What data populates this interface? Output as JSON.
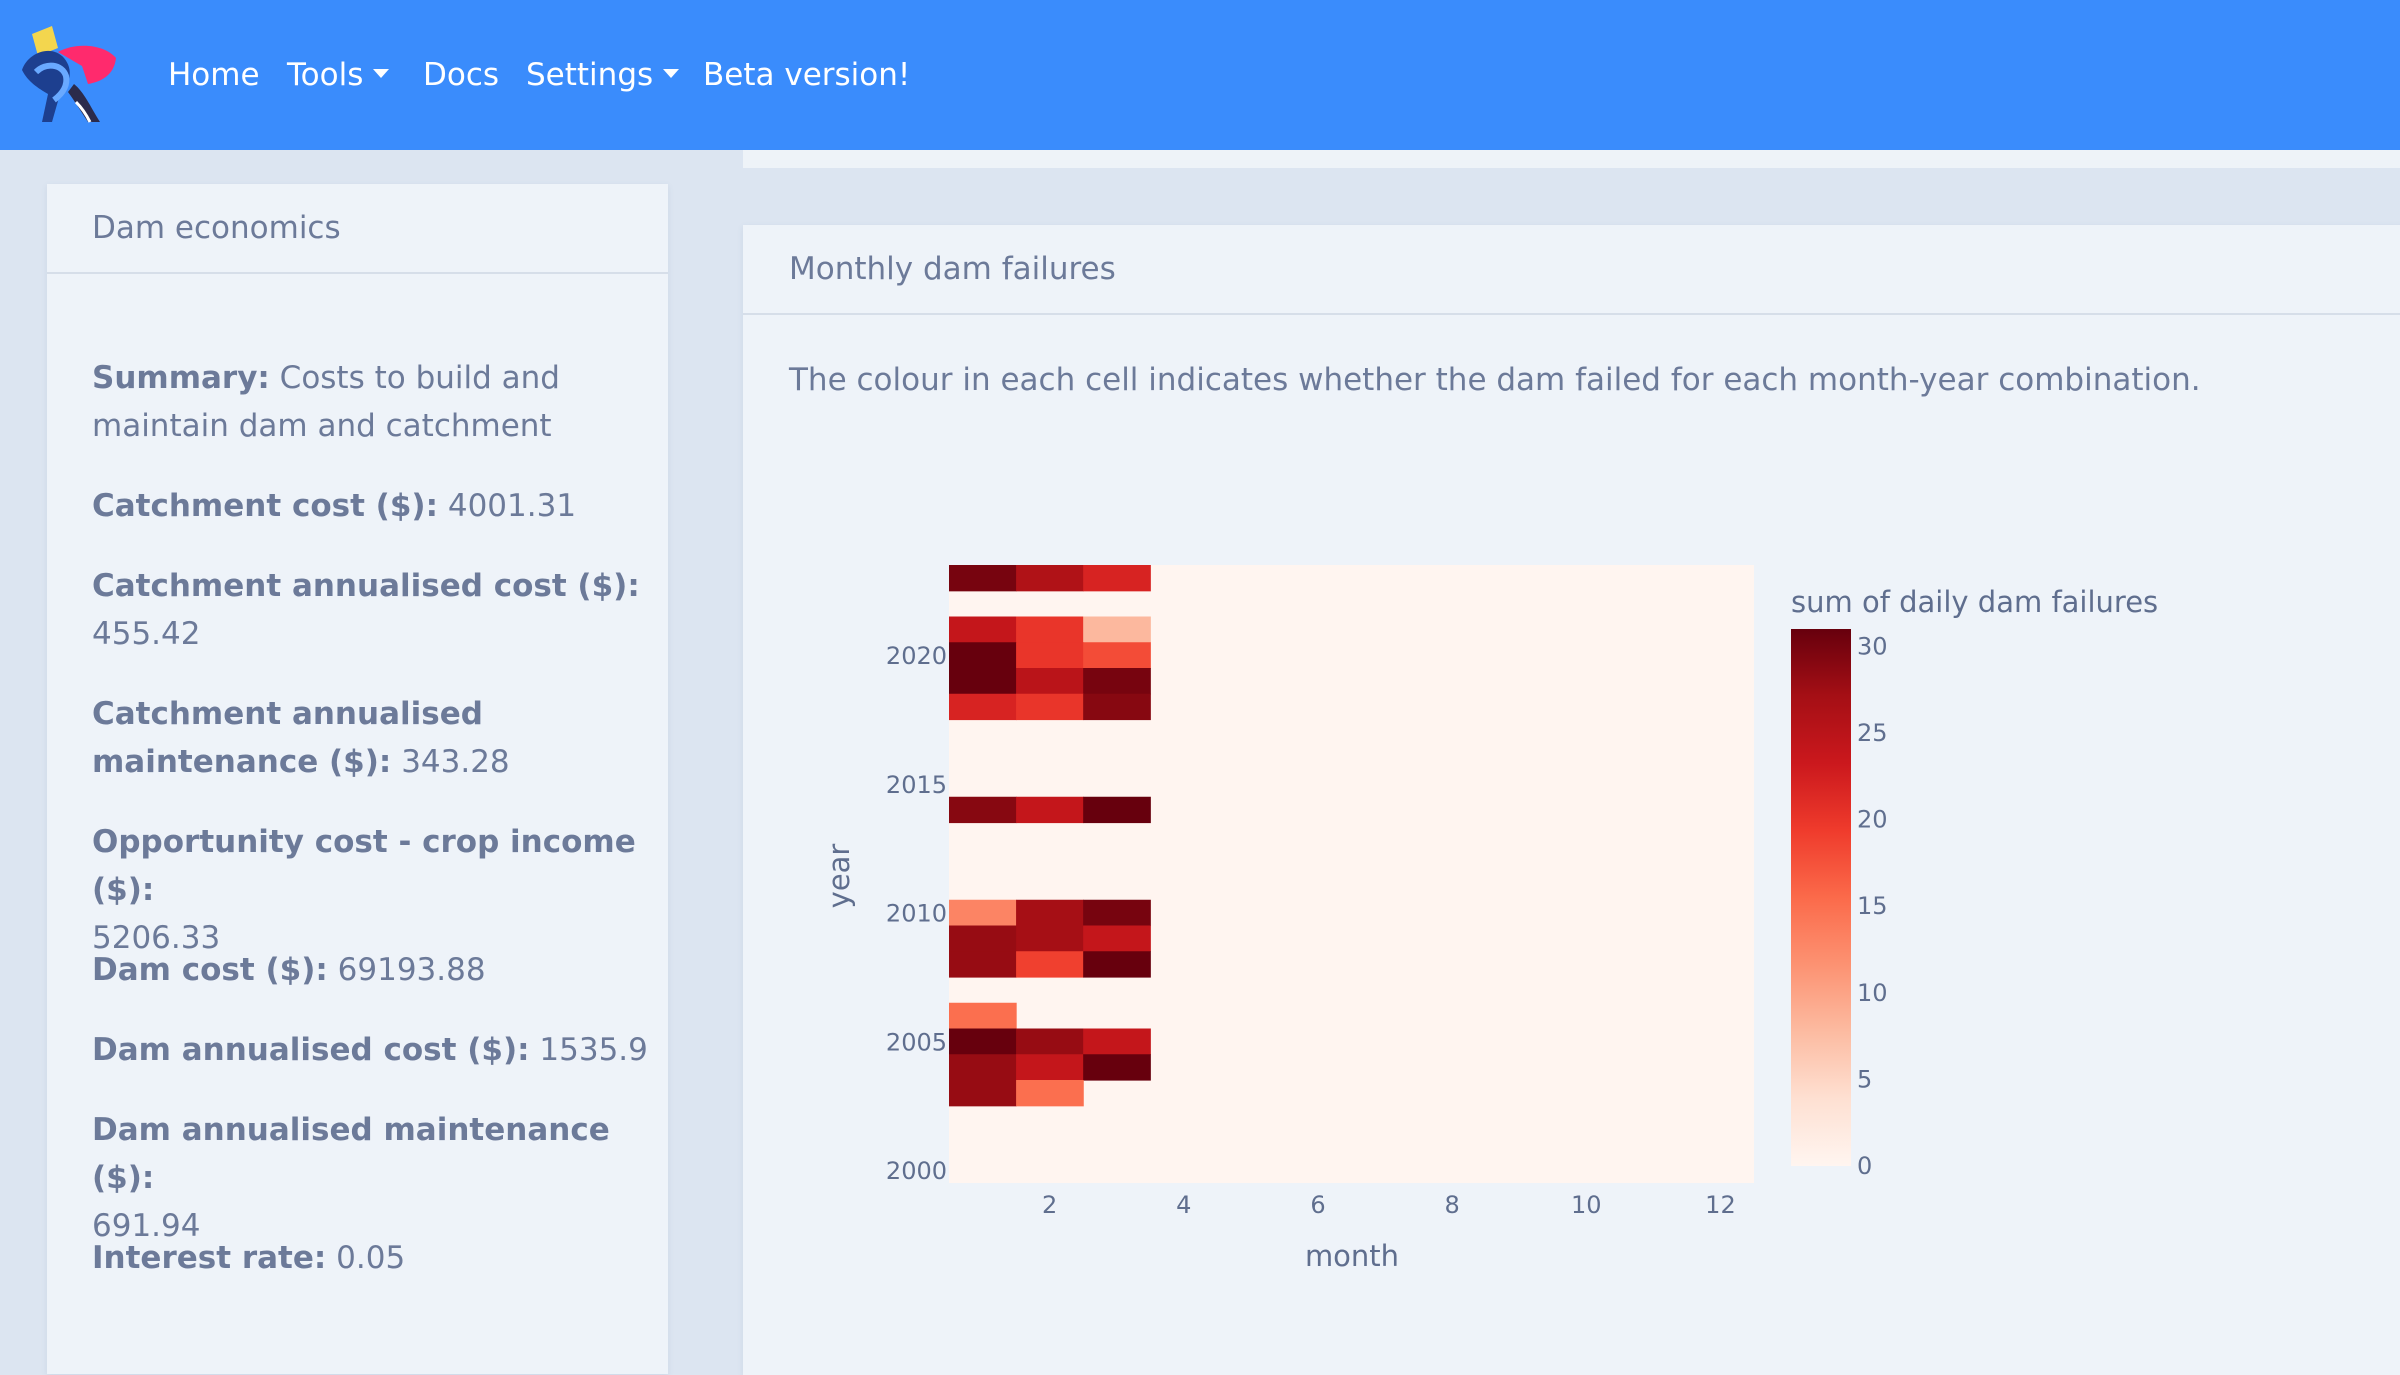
{
  "navbar": {
    "items": [
      {
        "label": "Home",
        "dropdown": false
      },
      {
        "label": "Tools",
        "dropdown": true
      },
      {
        "label": "Docs",
        "dropdown": false
      },
      {
        "label": "Settings",
        "dropdown": true
      },
      {
        "label": "Beta version!",
        "dropdown": false
      }
    ],
    "color": "#3a8cfc"
  },
  "economics": {
    "title": "Dam economics",
    "fields": [
      {
        "label": "Summary:",
        "value": "Costs to build and maintain dam and catchment"
      },
      {
        "label": "Catchment cost ($):",
        "value": "4001.31"
      },
      {
        "label": "Catchment annualised cost ($):",
        "value": "455.42"
      },
      {
        "label": "Catchment annualised maintenance ($):",
        "value": "343.28"
      },
      {
        "label": "Opportunity cost - crop income ($):",
        "value": "5206.33"
      },
      {
        "label": "Dam cost ($):",
        "value": "69193.88"
      },
      {
        "label": "Dam annualised cost ($):",
        "value": "1535.9"
      },
      {
        "label": "Dam annualised maintenance ($):",
        "value": "691.94"
      },
      {
        "label": "Interest rate:",
        "value": "0.05"
      }
    ]
  },
  "failures": {
    "title": "Monthly dam failures",
    "description": "The colour in each cell indicates whether the dam failed for each month-year combination."
  },
  "chart_data": {
    "type": "heatmap",
    "xlabel": "month",
    "ylabel": "year",
    "colorbar_title": "sum of daily dam failures",
    "x_ticks": [
      2,
      4,
      6,
      8,
      10,
      12
    ],
    "y_ticks": [
      2000,
      2005,
      2010,
      2015,
      2020
    ],
    "colorbar_ticks": [
      0,
      5,
      10,
      15,
      20,
      25,
      30
    ],
    "xlim": [
      0.5,
      12.5
    ],
    "ylim": [
      1999.5,
      2023.5
    ],
    "zlim": [
      0,
      31
    ],
    "colorscale": "Reds",
    "months": [
      1,
      2,
      3
    ],
    "rows": [
      {
        "year": 2023,
        "values": [
          30,
          26,
          22
        ]
      },
      {
        "year": 2022,
        "values": [
          0,
          0,
          0
        ]
      },
      {
        "year": 2021,
        "values": [
          24,
          20,
          8
        ]
      },
      {
        "year": 2020,
        "values": [
          31,
          20,
          18
        ]
      },
      {
        "year": 2019,
        "values": [
          31,
          25,
          30
        ]
      },
      {
        "year": 2018,
        "values": [
          22,
          20,
          29
        ]
      },
      {
        "year": 2014,
        "values": [
          29,
          24,
          31
        ]
      },
      {
        "year": 2010,
        "values": [
          13,
          27,
          30
        ]
      },
      {
        "year": 2009,
        "values": [
          28,
          27,
          24
        ]
      },
      {
        "year": 2008,
        "values": [
          28,
          19,
          31
        ]
      },
      {
        "year": 2006,
        "values": [
          15,
          0,
          0
        ]
      },
      {
        "year": 2005,
        "values": [
          31,
          28,
          24
        ]
      },
      {
        "year": 2004,
        "values": [
          28,
          24,
          31
        ]
      },
      {
        "year": 2003,
        "values": [
          28,
          15,
          0
        ]
      }
    ]
  }
}
